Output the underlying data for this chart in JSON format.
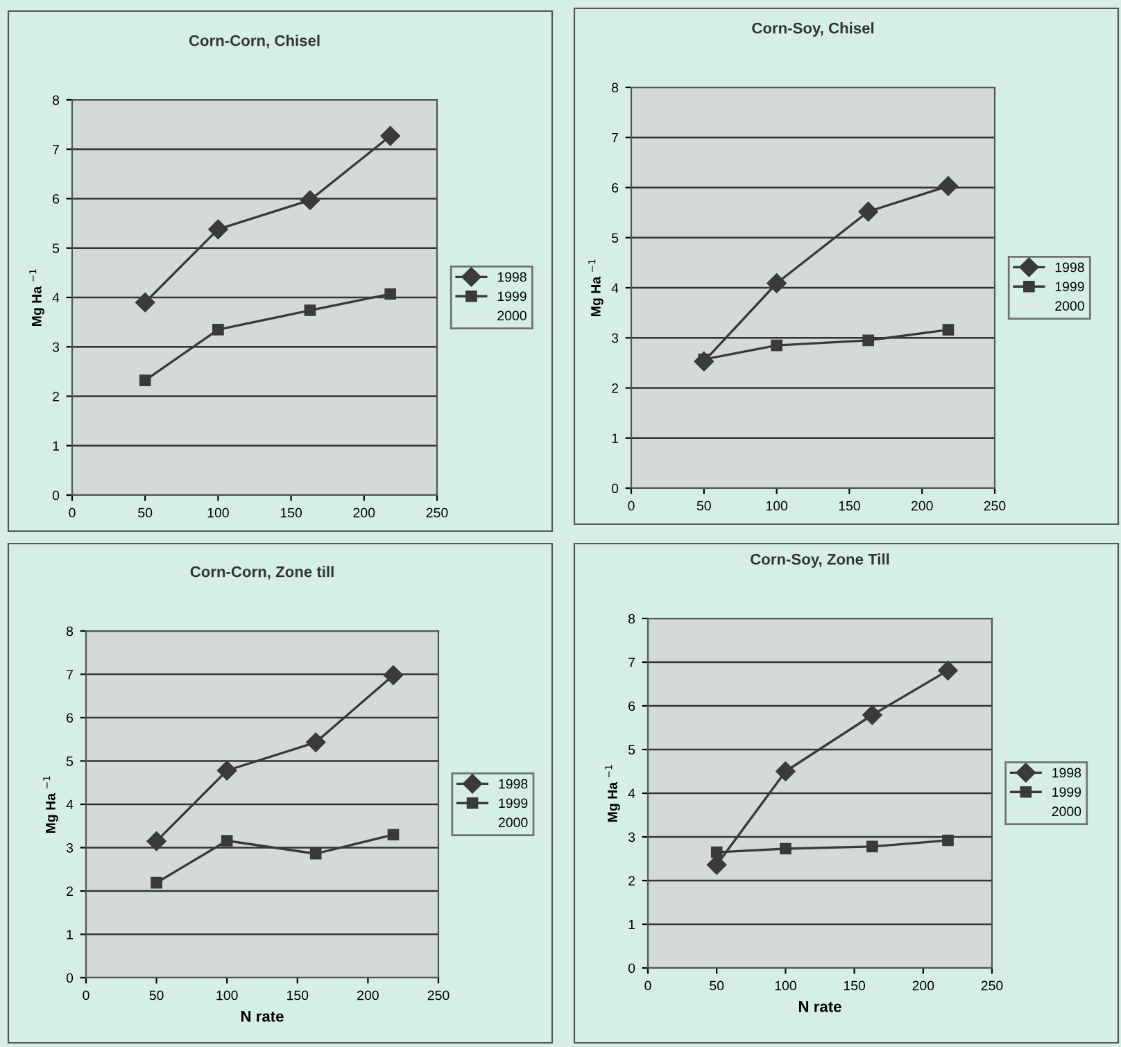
{
  "chart_data": [
    {
      "type": "line",
      "title": "Corn-Corn, Chisel",
      "ylabel": "Mg Ha $^{−1}$",
      "x": [
        50,
        100,
        163,
        218
      ],
      "xlim": [
        0,
        250
      ],
      "xticks": [
        0,
        50,
        100,
        150,
        200,
        250
      ],
      "ylim": [
        0,
        8
      ],
      "yticks": [
        0,
        1,
        2,
        3,
        4,
        5,
        6,
        7,
        8
      ],
      "grid": "y",
      "legend": "right",
      "series": [
        {
          "name": "1998",
          "color": "#3a3a3a",
          "marker": "diamond",
          "values": [
            3.9,
            5.38,
            5.97,
            7.27
          ]
        },
        {
          "name": "1999",
          "color": "#3a3a3a",
          "marker": "square",
          "values": [
            2.32,
            3.35,
            3.74,
            4.07
          ]
        },
        {
          "name": "2000",
          "color": "#e4e8e4",
          "marker": "none",
          "values": [
            null,
            null,
            null,
            null
          ]
        }
      ]
    },
    {
      "type": "line",
      "title": "Corn-Soy, Chisel",
      "ylabel": "Mg Ha $^{−1}$",
      "x": [
        50,
        100,
        163,
        218
      ],
      "xlim": [
        0,
        250
      ],
      "xticks": [
        0,
        50,
        100,
        150,
        200,
        250
      ],
      "ylim": [
        0,
        8
      ],
      "yticks": [
        0,
        1,
        2,
        3,
        4,
        5,
        6,
        7,
        8
      ],
      "grid": "y",
      "legend": "right",
      "series": [
        {
          "name": "1998",
          "color": "#3a3a3a",
          "marker": "diamond",
          "values": [
            2.53,
            4.09,
            5.52,
            6.03
          ]
        },
        {
          "name": "1999",
          "color": "#3a3a3a",
          "marker": "square",
          "values": [
            2.57,
            2.85,
            2.95,
            3.16
          ]
        },
        {
          "name": "2000",
          "color": "#e4e8e4",
          "marker": "none",
          "values": [
            null,
            null,
            null,
            null
          ]
        }
      ]
    },
    {
      "type": "line",
      "title": "Corn-Corn, Zone till",
      "ylabel": "Mg Ha $^{−1}$",
      "xlabel": "N rate",
      "x": [
        50,
        100,
        163,
        218
      ],
      "xlim": [
        0,
        250
      ],
      "xticks": [
        0,
        50,
        100,
        150,
        200,
        250
      ],
      "ylim": [
        0,
        8
      ],
      "yticks": [
        0,
        1,
        2,
        3,
        4,
        5,
        6,
        7,
        8
      ],
      "grid": "y",
      "legend": "right",
      "series": [
        {
          "name": "1998",
          "color": "#3a3a3a",
          "marker": "diamond",
          "values": [
            3.15,
            4.78,
            5.43,
            6.98
          ]
        },
        {
          "name": "1999",
          "color": "#3a3a3a",
          "marker": "square",
          "values": [
            2.19,
            3.16,
            2.86,
            3.3
          ]
        },
        {
          "name": "2000",
          "color": "#e4e8e4",
          "marker": "none",
          "values": [
            null,
            null,
            null,
            null
          ]
        }
      ]
    },
    {
      "type": "line",
      "title": "Corn-Soy, Zone Till",
      "ylabel": "Mg Ha $^{−1}$",
      "xlabel": "N rate",
      "x": [
        50,
        100,
        163,
        218
      ],
      "xlim": [
        0,
        250
      ],
      "xticks": [
        0,
        50,
        100,
        150,
        200,
        250
      ],
      "ylim": [
        0,
        8
      ],
      "yticks": [
        0,
        1,
        2,
        3,
        4,
        5,
        6,
        7,
        8
      ],
      "grid": "y",
      "legend": "right",
      "series": [
        {
          "name": "1998",
          "color": "#3a3a3a",
          "marker": "diamond",
          "values": [
            2.36,
            4.5,
            5.79,
            6.81
          ]
        },
        {
          "name": "1999",
          "color": "#3a3a3a",
          "marker": "square",
          "values": [
            2.65,
            2.73,
            2.78,
            2.92
          ]
        },
        {
          "name": "2000",
          "color": "#e4e8e4",
          "marker": "none",
          "values": [
            null,
            null,
            null,
            null
          ]
        }
      ]
    }
  ]
}
